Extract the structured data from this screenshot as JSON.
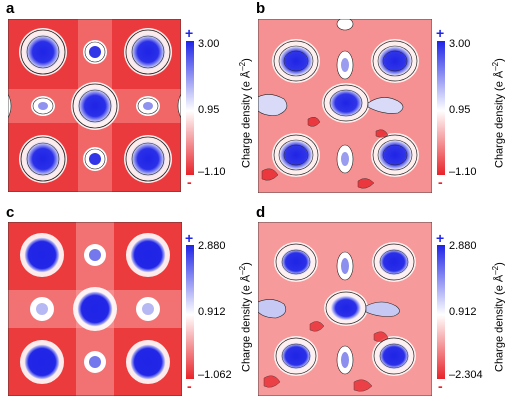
{
  "colors": {
    "low": "#e8232a",
    "mid": "#ffffff",
    "high": "#1f24e6",
    "plus": "#1f24e6",
    "minus": "#e8232a"
  },
  "colorbar": {
    "plus_symbol": "+",
    "minus_symbol": "-",
    "label_prefix": "Charge density (e Å",
    "label_exponent": "–2",
    "label_suffix": ")"
  },
  "panels": [
    {
      "letter": "a",
      "max": "3.00",
      "mid": "0.95",
      "min": "–1.10"
    },
    {
      "letter": "b",
      "max": "3.00",
      "mid": "0.95",
      "min": "–1.10"
    },
    {
      "letter": "c",
      "max": "2.880",
      "mid": "0.912",
      "min": "–1.062"
    },
    {
      "letter": "d",
      "max": "2.880",
      "mid": "0.912",
      "min": "–2.304"
    }
  ]
}
